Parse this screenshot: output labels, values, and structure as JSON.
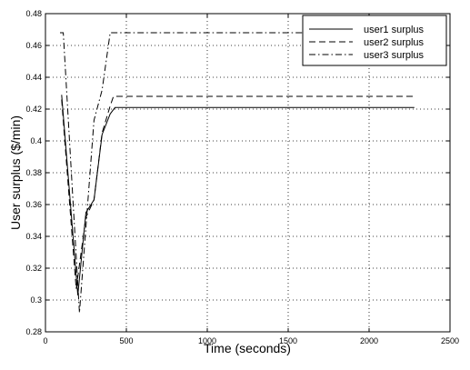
{
  "chart_data": {
    "type": "line",
    "title": "",
    "xlabel": "Time (seconds)",
    "ylabel": "User surplus ($/min)",
    "xlim": [
      0,
      2500
    ],
    "ylim": [
      0.28,
      0.48
    ],
    "xticks": [
      0,
      500,
      1000,
      1500,
      2000,
      2500
    ],
    "yticks": [
      0.28,
      0.3,
      0.32,
      0.34,
      0.36,
      0.38,
      0.4,
      0.42,
      0.44,
      0.46,
      0.48
    ],
    "xtick_labels": [
      "0",
      "500",
      "1000",
      "1500",
      "2000",
      "2500"
    ],
    "ytick_labels": [
      "0.28",
      "0.3",
      "0.32",
      "0.34",
      "0.36",
      "0.38",
      "0.4",
      "0.42",
      "0.44",
      "0.46",
      "0.48"
    ],
    "grid": true,
    "grid_style": "dotted",
    "legend_position": "top-right",
    "series": [
      {
        "name": "user1 surplus",
        "style": "solid",
        "color": "#000000",
        "x": [
          100,
          200,
          250,
          300,
          350,
          400,
          430,
          2280
        ],
        "y": [
          0.429,
          0.303,
          0.355,
          0.363,
          0.404,
          0.417,
          0.421,
          0.421
        ]
      },
      {
        "name": "user2 surplus",
        "style": "dashed",
        "color": "#000000",
        "x": [
          100,
          190,
          250,
          300,
          350,
          400,
          420,
          2280
        ],
        "y": [
          0.426,
          0.307,
          0.352,
          0.363,
          0.405,
          0.422,
          0.428,
          0.428
        ]
      },
      {
        "name": "user3 surplus",
        "style": "dashdot",
        "color": "#000000",
        "x": [
          90,
          110,
          210,
          300,
          350,
          400,
          2280
        ],
        "y": [
          0.468,
          0.468,
          0.292,
          0.413,
          0.432,
          0.468,
          0.468
        ]
      }
    ]
  }
}
